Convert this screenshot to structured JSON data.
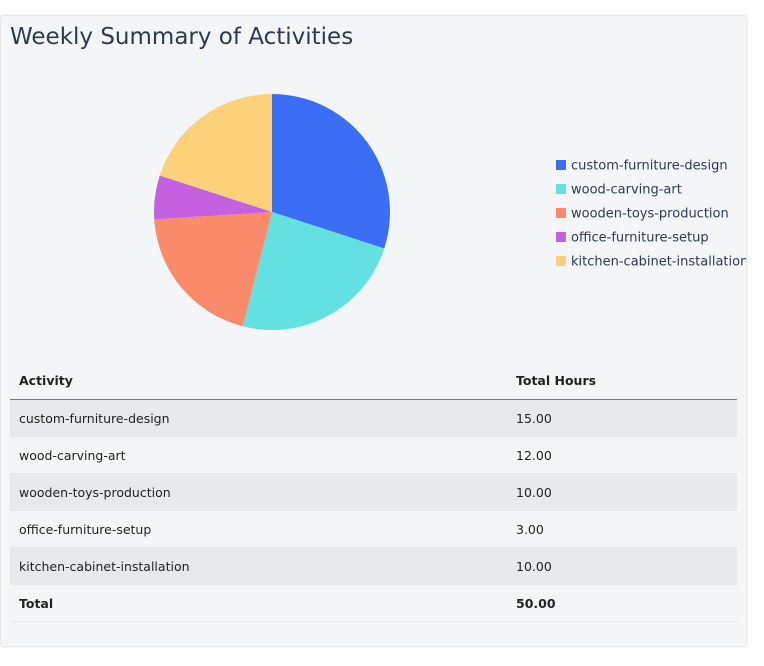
{
  "title": "Weekly Summary of Activities",
  "chart_data": {
    "type": "pie",
    "categories": [
      "custom-furniture-design",
      "wood-carving-art",
      "wooden-toys-production",
      "office-furniture-setup",
      "kitchen-cabinet-installation"
    ],
    "values": [
      15,
      12,
      10,
      3,
      10
    ],
    "colors": [
      "#3b6ef5",
      "#63e0e0",
      "#f98b6b",
      "#c561e0",
      "#fdd17a"
    ],
    "legend": "right"
  },
  "table": {
    "header": [
      "Activity",
      "Total Hours"
    ],
    "rows": [
      [
        "custom-furniture-design",
        "15.00"
      ],
      [
        "wood-carving-art",
        "12.00"
      ],
      [
        "wooden-toys-production",
        "10.00"
      ],
      [
        "office-furniture-setup",
        "3.00"
      ],
      [
        "kitchen-cabinet-installation",
        "10.00"
      ]
    ],
    "total": [
      "Total",
      "50.00"
    ]
  }
}
